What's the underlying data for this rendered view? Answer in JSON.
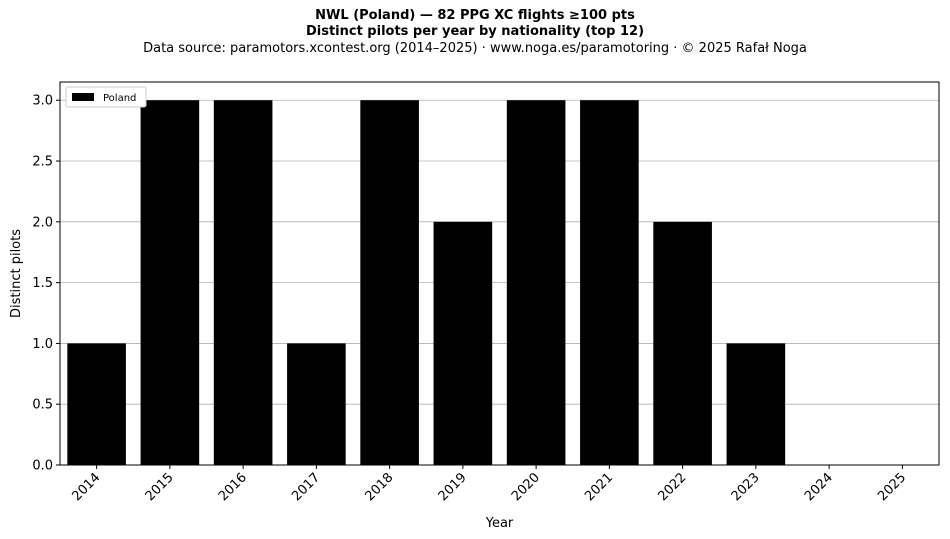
{
  "chart_data": {
    "type": "bar",
    "title": "NWL (Poland)  —  82 PPG XC flights ≥100 pts",
    "subtitle": "Distinct pilots per year by nationality (top 12)",
    "source": "Data source: paramotors.xcontest.org (2014–2025)  ·  www.noga.es/paramotoring  ·  © 2025 Rafał Noga",
    "xlabel": "Year",
    "ylabel": "Distinct pilots",
    "categories": [
      "2014",
      "2015",
      "2016",
      "2017",
      "2018",
      "2019",
      "2020",
      "2021",
      "2022",
      "2023",
      "2024",
      "2025"
    ],
    "series": [
      {
        "name": "Poland",
        "values": [
          1,
          3,
          3,
          1,
          3,
          2,
          3,
          3,
          2,
          1,
          0,
          0
        ],
        "color": "#000000"
      }
    ],
    "yticks": [
      "0.0",
      "0.5",
      "1.0",
      "1.5",
      "2.0",
      "2.5",
      "3.0"
    ],
    "ylim": [
      0,
      3.15
    ],
    "grid": "y",
    "legend": "top-left"
  }
}
